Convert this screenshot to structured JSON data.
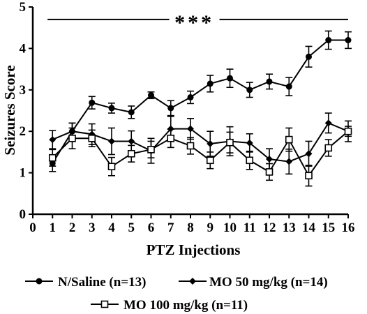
{
  "chart_data": {
    "type": "line",
    "xlabel": "PTZ Injections",
    "ylabel": "Seizures Score",
    "xlim": [
      0,
      16
    ],
    "ylim": [
      0,
      5
    ],
    "x_ticks": [
      "0",
      "1",
      "2",
      "3",
      "4",
      "5",
      "6",
      "7",
      "8",
      "9",
      "10",
      "11",
      "12",
      "13",
      "14",
      "15",
      "16"
    ],
    "y_ticks": [
      "0",
      "1",
      "2",
      "3",
      "4",
      "5"
    ],
    "grid": false,
    "legend_position": "bottom",
    "annotation": {
      "text": "***",
      "line_from_x": 0.75,
      "line_to_x": 16,
      "y": 4.7
    },
    "x": [
      1,
      2,
      3,
      4,
      5,
      6,
      7,
      8,
      9,
      10,
      11,
      12,
      13,
      14,
      15,
      16
    ],
    "series": [
      {
        "name": "N/Saline (n=13)",
        "marker": "filled-circle",
        "color": "#000000",
        "values": [
          1.23,
          2.0,
          2.69,
          2.56,
          2.46,
          2.87,
          2.56,
          2.82,
          3.15,
          3.28,
          3.0,
          3.2,
          3.08,
          3.8,
          4.2,
          4.2
        ],
        "errors": [
          0.2,
          0.2,
          0.15,
          0.12,
          0.15,
          0.08,
          0.18,
          0.15,
          0.2,
          0.22,
          0.18,
          0.18,
          0.22,
          0.25,
          0.22,
          0.2
        ]
      },
      {
        "name": "MO 50 mg/kg (n=14)",
        "marker": "filled-diamond",
        "color": "#000000",
        "values": [
          1.8,
          2.0,
          1.93,
          1.76,
          1.76,
          1.53,
          2.06,
          2.06,
          1.7,
          1.76,
          1.72,
          1.33,
          1.27,
          1.46,
          2.2,
          2.0
        ],
        "errors": [
          0.22,
          0.2,
          0.25,
          0.32,
          0.25,
          0.3,
          0.3,
          0.25,
          0.3,
          0.35,
          0.22,
          0.25,
          0.3,
          0.3,
          0.24,
          0.25
        ]
      },
      {
        "name": "MO 100 mg/kg (n=11)",
        "marker": "open-square",
        "color": "#000000",
        "values": [
          1.36,
          1.83,
          1.83,
          1.15,
          1.46,
          1.56,
          1.83,
          1.65,
          1.3,
          1.73,
          1.3,
          1.02,
          1.8,
          0.93,
          1.6,
          2.0
        ],
        "errors": [
          0.2,
          0.25,
          0.2,
          0.22,
          0.2,
          0.2,
          0.22,
          0.2,
          0.2,
          0.25,
          0.22,
          0.2,
          0.28,
          0.25,
          0.2,
          0.12
        ]
      }
    ]
  }
}
